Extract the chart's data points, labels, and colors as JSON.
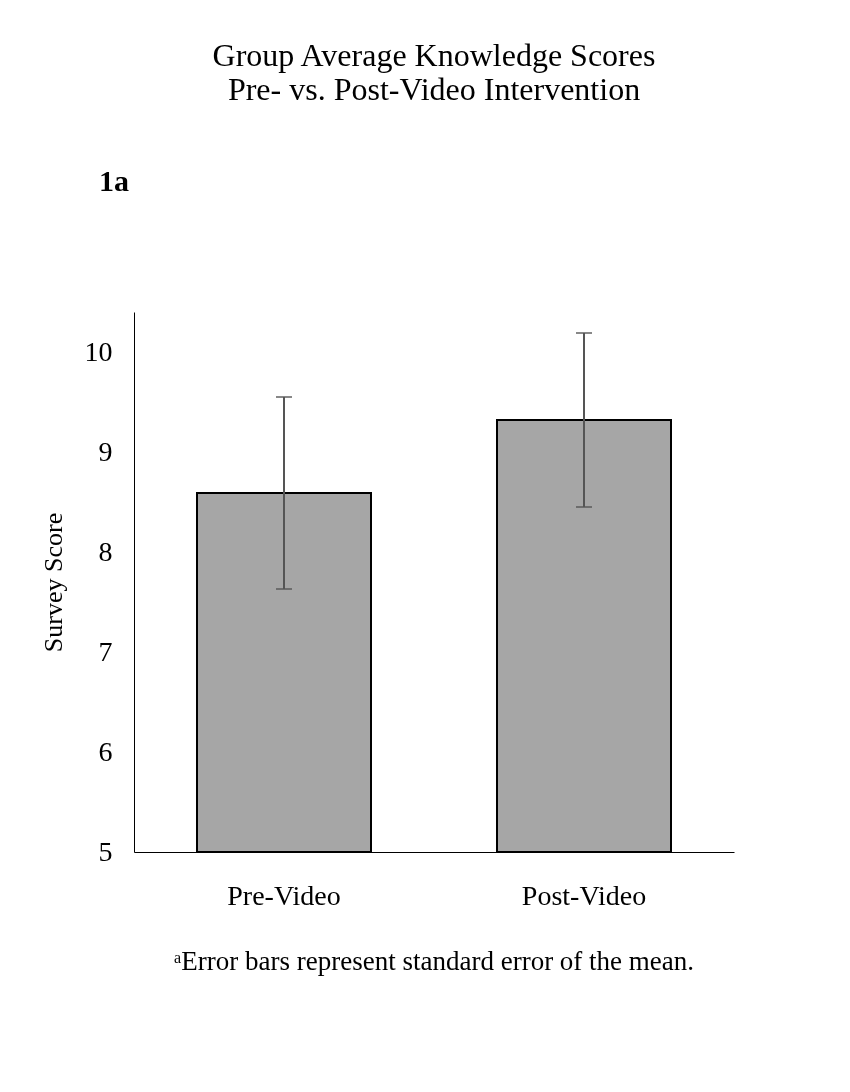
{
  "chart_data": {
    "type": "bar",
    "title": [
      "Group Average Knowledge Scores",
      "Pre- vs. Post-Video Intervention"
    ],
    "ylabel": "Survey Score",
    "categories": [
      "Pre-Video",
      "Post-Video"
    ],
    "values": [
      8.59,
      9.32
    ],
    "errors": [
      0.96,
      0.87
    ],
    "color": "#a6a6a6",
    "ylim": [
      5,
      10.4
    ],
    "yticks": [
      5,
      6,
      7,
      8,
      9,
      10
    ],
    "grid": false,
    "annotations": [
      "1a",
      "ᵃError bars represent standard error of the mean."
    ]
  }
}
